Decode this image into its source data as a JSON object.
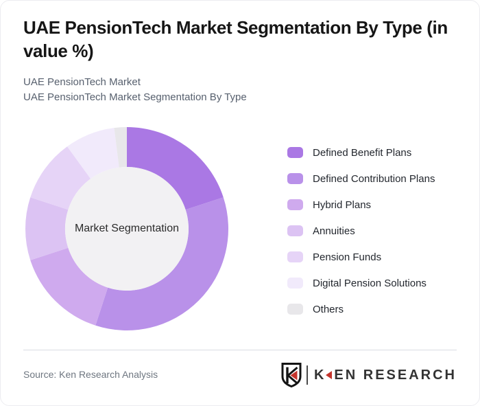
{
  "card": {
    "title_line1": "UAE PensionTech Market Segmentation By Type (in",
    "title_line2": "value %)",
    "subtitle_line1": "UAE PensionTech Market",
    "subtitle_line2": "UAE PensionTech Market Segmentation By Type",
    "source": "Source: Ken Research Analysis"
  },
  "logo": {
    "shield_letter": "K",
    "wordmark_k": "K",
    "wordmark_rest": "EN RESEARCH",
    "red": "#c4342c",
    "dark": "#333333"
  },
  "chart_data": {
    "type": "pie",
    "subtype": "donut",
    "title": "UAE PensionTech Market Segmentation By Type (in value %)",
    "units": "value %",
    "center_label": "Market Segmentation",
    "start_angle_deg": 0,
    "direction": "clockwise",
    "legend_position": "right",
    "hole_color": "#f2f1f3",
    "segments": [
      {
        "label": "Defined Benefit Plans",
        "value": 20,
        "color": "#aa78e4"
      },
      {
        "label": "Defined Contribution Plans",
        "value": 35,
        "color": "#b991e9"
      },
      {
        "label": "Hybrid Plans",
        "value": 15,
        "color": "#cfaaee"
      },
      {
        "label": "Annuities",
        "value": 10,
        "color": "#dcc3f3"
      },
      {
        "label": "Pension Funds",
        "value": 10,
        "color": "#e6d4f7"
      },
      {
        "label": "Digital Pension Solutions",
        "value": 8,
        "color": "#f1eafb"
      },
      {
        "label": "Others",
        "value": 2,
        "color": "#e8e7ea"
      }
    ]
  }
}
